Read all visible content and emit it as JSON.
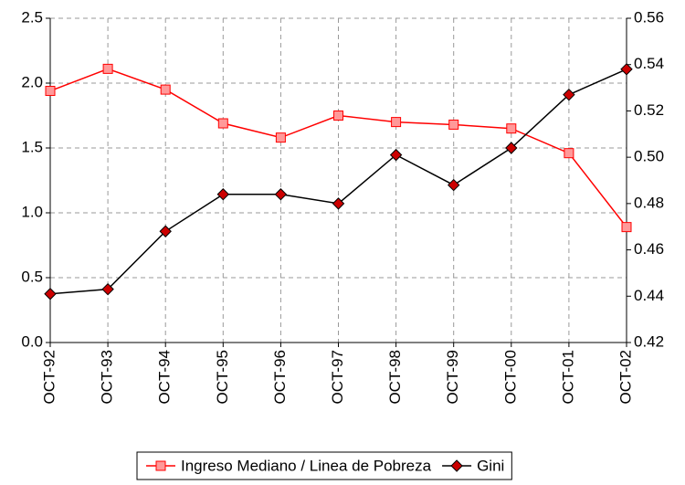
{
  "chart_data": {
    "type": "line",
    "categories": [
      "OCT-92",
      "OCT-93",
      "OCT-94",
      "OCT-95",
      "OCT-96",
      "OCT-97",
      "OCT-98",
      "OCT-99",
      "OCT-00",
      "OCT-01",
      "OCT-02"
    ],
    "series": [
      {
        "name": "Ingreso Mediano / Linea de Pobreza",
        "color": "#ff0000",
        "marker": "square",
        "marker_color": "#ff9999",
        "axis": "y",
        "values": [
          1.94,
          2.11,
          1.95,
          1.69,
          1.58,
          1.75,
          1.7,
          1.68,
          1.65,
          1.46,
          0.89
        ]
      },
      {
        "name": "Gini",
        "color": "#000000",
        "marker": "diamond",
        "marker_color": "#cc0000",
        "axis": "y2",
        "values": [
          0.441,
          0.443,
          0.468,
          0.484,
          0.484,
          0.48,
          0.501,
          0.488,
          0.504,
          0.527,
          0.538
        ]
      }
    ],
    "ylim": [
      0,
      2.5
    ],
    "yticks": [
      {
        "value": 0,
        "label": "0.0"
      },
      0.5,
      {
        "value": 1,
        "label": "1.0"
      },
      1.5,
      {
        "value": 2,
        "label": "2.0"
      },
      2.5
    ],
    "y2lim": [
      0.42,
      0.56
    ],
    "y2ticks": [
      0.42,
      0.44,
      0.46,
      0.48,
      {
        "value": 0.5,
        "label": "0.50"
      },
      0.52,
      0.54,
      0.56
    ],
    "grid": true,
    "legend": "bottom"
  }
}
